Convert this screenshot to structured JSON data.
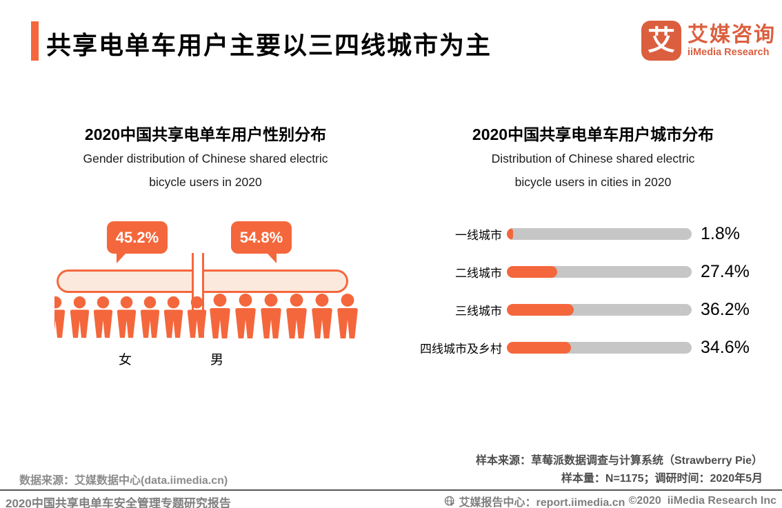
{
  "header": {
    "title": "共享电单车用户主要以三四线城市为主",
    "logo": {
      "mark": "艾",
      "name_zh": "艾媒咨询",
      "name_en": "iiMedia Research"
    }
  },
  "gender_chart": {
    "title_zh": "2020中国共享电单车用户性别分布",
    "subtitle_en_line1": "Gender distribution of Chinese shared electric",
    "subtitle_en_line2": "bicycle users in 2020",
    "female": {
      "label": "女",
      "value": "45.2%"
    },
    "male": {
      "label": "男",
      "value": "54.8%"
    }
  },
  "city_chart": {
    "title_zh": "2020中国共享电单车用户城市分布",
    "subtitle_en_line1": "Distribution of Chinese shared  electric",
    "subtitle_en_line2": "bicycle users in cities in 2020",
    "rows": [
      {
        "label": "一线城市",
        "value": "1.8%",
        "pct": 1.8
      },
      {
        "label": "二线城市",
        "value": "27.4%",
        "pct": 27.4
      },
      {
        "label": "三线城市",
        "value": "36.2%",
        "pct": 36.2
      },
      {
        "label": "四线城市及乡村",
        "value": "34.6%",
        "pct": 34.6
      }
    ]
  },
  "chart_data": [
    {
      "type": "bar",
      "variant": "pictogram",
      "title": "2020中国共享电单车用户性别分布",
      "subtitle": "Gender distribution of Chinese shared electric bicycle users in 2020",
      "categories": [
        "女",
        "男"
      ],
      "values": [
        45.2,
        54.8
      ],
      "unit": "%"
    },
    {
      "type": "bar",
      "orientation": "horizontal",
      "title": "2020中国共享电单车用户城市分布",
      "subtitle": "Distribution of Chinese shared electric bicycle users in cities in 2020",
      "categories": [
        "一线城市",
        "二线城市",
        "三线城市",
        "四线城市及乡村"
      ],
      "values": [
        1.8,
        27.4,
        36.2,
        34.6
      ],
      "unit": "%",
      "xlim": [
        0,
        100
      ],
      "grid": false,
      "legend": false
    }
  ],
  "footer": {
    "data_source": "数据来源：艾媒数据中心(data.iimedia.cn)",
    "sample_source": "样本来源：草莓派数据调查与计算系统（Strawberry Pie）",
    "sample_info": "样本量：N=1175；调研时间：2020年5月",
    "report_title": "2020中国共享电单车安全管理专题研究报告",
    "report_center": "艾媒报告中心：report.iimedia.cn",
    "copyright": "©2020  iiMedia Research Inc"
  },
  "colors": {
    "primary_orange": "#F4673C",
    "logo_orange": "#DB5F3F",
    "pill_fill": "#FCE9DE",
    "bar_track_gray": "#C6C6C6",
    "footer_gray": "#8C8C8C",
    "footer_dark_gray": "#4D4D4D"
  }
}
